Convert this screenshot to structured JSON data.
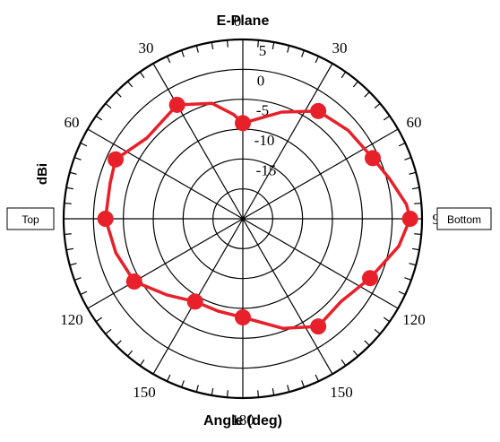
{
  "chart_data": {
    "type": "polar-line",
    "title": "E-Plane",
    "xlabel": "Angle (deg)",
    "ylabel": "dBi",
    "angle_tick_labels": [
      "0",
      "30",
      "60",
      "90",
      "120",
      "150",
      "180",
      "150",
      "120",
      "90",
      "60",
      "30"
    ],
    "radial_tick_labels": [
      "5",
      "0",
      "-5",
      "-10",
      "-15"
    ],
    "rlim": [
      -25,
      5
    ],
    "side_labels": {
      "left": "Top",
      "right": "Bottom"
    },
    "series": [
      {
        "color": "#e8202a",
        "angles_deg": [
          0,
          35,
          65,
          90,
          115,
          145,
          180,
          210,
          240,
          270,
          295,
          330
        ],
        "values": [
          -9,
          -3,
          -1,
          3,
          -1.5,
          -3,
          -8.5,
          -9,
          -4,
          -2,
          -1.5,
          -3
        ]
      }
    ],
    "angles_deg_dense": [
      0,
      20,
      35,
      50,
      65,
      75,
      85,
      90,
      100,
      115,
      130,
      145,
      160,
      180,
      195,
      210,
      225,
      240,
      255,
      270,
      285,
      295,
      310,
      330,
      345,
      355,
      360
    ],
    "values_dense": [
      -9,
      -6,
      -3,
      -2,
      -1,
      0.5,
      2.5,
      3,
      1.5,
      -1.5,
      -3.5,
      -3,
      -5.5,
      -8.5,
      -9,
      -9,
      -7,
      -4,
      -3,
      -2,
      -2,
      -1.5,
      -4,
      -3,
      -5,
      -7.5,
      -9
    ]
  }
}
